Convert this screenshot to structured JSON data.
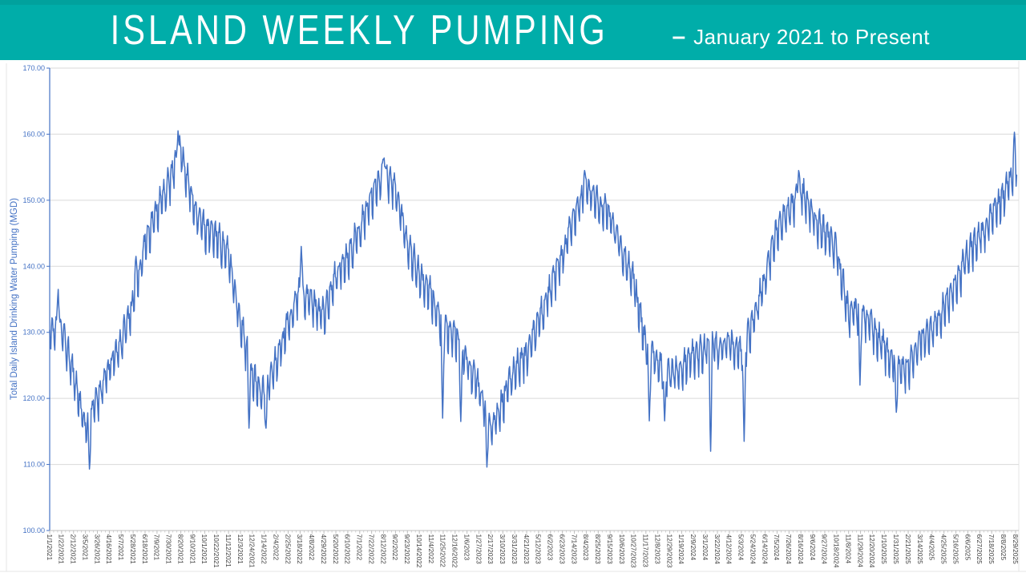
{
  "header": {
    "title": "ISLAND WEEKLY PUMPING",
    "separator": "–",
    "subtitle": "January 2021 to Present"
  },
  "colors": {
    "banner": "#00ADA9",
    "banner_top_strip": "#01A19D",
    "title_text": "#FFFFFF",
    "background": "#FFFFFF",
    "line": "#4472C4",
    "axis_labels_y": "#4472C4",
    "axis_title": "#4472C4",
    "axis_labels_x": "#404040",
    "gridline": "#D9D9D9",
    "axis_line": "#BFBFBF",
    "frame_line": "#E4E4E4"
  },
  "chart_data": {
    "type": "line",
    "title": "",
    "xlabel": "",
    "ylabel": "Total Daily Island Drinking Water Pumping (MGD)",
    "ylim": [
      100,
      170
    ],
    "y_tick_step": 10,
    "y_tick_labels": [
      "100.00",
      "110.00",
      "120.00",
      "130.00",
      "140.00",
      "150.00",
      "160.00",
      "170.00"
    ],
    "grid": "horizontal",
    "legend": "none",
    "sampling": "daily",
    "x_tick_interval_days": 21,
    "x_start_date": "1/1/2021",
    "x_end_date": "8/31/2025",
    "x_tick_labels": [
      "1/1/2021",
      "1/22/2021",
      "2/12/2021",
      "3/5/2021",
      "3/26/2021",
      "4/16/2021",
      "5/7/2021",
      "5/28/2021",
      "6/18/2021",
      "7/9/2021",
      "7/30/2021",
      "8/20/2021",
      "9/10/2021",
      "10/1/2021",
      "10/22/2021",
      "11/12/2021",
      "12/3/2021",
      "12/24/2021",
      "1/14/2022",
      "2/4/2022",
      "2/25/2022",
      "3/18/2022",
      "4/8/2022",
      "4/29/2022",
      "5/20/2022",
      "6/10/2022",
      "7/1/2022",
      "7/22/2022",
      "8/12/2022",
      "9/2/2022",
      "9/23/2022",
      "10/14/2022",
      "11/4/2022",
      "11/25/2022",
      "12/16/2022",
      "1/6/2023",
      "1/27/2023",
      "2/17/2023",
      "3/10/2023",
      "3/31/2023",
      "4/21/2023",
      "5/12/2023",
      "6/2/2023",
      "6/23/2023",
      "7/14/2023",
      "8/4/2023",
      "8/25/2023",
      "9/15/2023",
      "10/6/2023",
      "10/27/2023",
      "11/17/2023",
      "12/8/2023",
      "12/29/2023",
      "1/19/2024",
      "2/9/2024",
      "3/1/2024",
      "3/22/2024",
      "4/12/2024",
      "5/3/2024",
      "5/24/2024",
      "6/14/2024",
      "7/5/2024",
      "7/26/2024",
      "8/16/2024",
      "9/6/2024",
      "9/27/2024",
      "10/18/2024",
      "11/8/2024",
      "11/29/2024",
      "12/20/2024",
      "1/10/2025",
      "1/31/2025",
      "2/21/2025",
      "3/14/2025",
      "4/4/2025",
      "4/25/2025",
      "5/16/2025",
      "6/6/2025",
      "6/27/2025",
      "7/18/2025",
      "8/8/2025",
      "8/29/2025"
    ],
    "series": [
      {
        "name": "Total Daily Island Drinking Water Pumping (MGD)",
        "anchor_note": "estimated center of daily band at each 21-day x tick",
        "anchor_values": [
          129.5,
          130,
          123,
          115,
          119.5,
          124,
          128,
          134,
          143,
          148,
          152,
          157,
          149,
          145,
          144,
          141,
          131,
          123,
          120,
          125,
          131,
          136,
          134,
          132,
          138,
          141,
          145,
          150,
          154,
          151,
          143,
          138,
          135,
          130,
          129,
          125,
          121,
          115,
          119,
          124,
          126,
          131,
          136,
          141,
          147,
          151.5,
          149,
          147,
          142,
          137,
          127,
          125,
          123,
          124,
          126,
          127,
          127,
          128,
          126,
          131,
          138,
          145,
          148,
          151,
          147,
          144.5,
          142,
          132,
          133,
          130,
          127,
          124,
          124,
          128,
          130,
          133,
          137,
          141,
          144,
          147,
          150,
          155
        ]
      }
    ],
    "extremes": [
      {
        "date": "1/16/2021",
        "value": 136.5,
        "kind": "peak"
      },
      {
        "date": "3/12/2021",
        "value": 109.3,
        "kind": "min"
      },
      {
        "date": "6/2/2021",
        "value": 141.5,
        "kind": "peak"
      },
      {
        "date": "8/15/2021",
        "value": 160.5,
        "kind": "max"
      },
      {
        "date": "12/18/2021",
        "value": 115.5,
        "kind": "dip"
      },
      {
        "date": "1/17/2022",
        "value": 115.5,
        "kind": "dip"
      },
      {
        "date": "3/20/2022",
        "value": 143,
        "kind": "peak"
      },
      {
        "date": "8/13/2022",
        "value": 156.4,
        "kind": "peak"
      },
      {
        "date": "11/24/2022",
        "value": 117,
        "kind": "dip"
      },
      {
        "date": "12/26/2022",
        "value": 116.5,
        "kind": "dip"
      },
      {
        "date": "2/10/2023",
        "value": 109.6,
        "kind": "dip"
      },
      {
        "date": "8/1/2023",
        "value": 154.5,
        "kind": "peak"
      },
      {
        "date": "11/23/2023",
        "value": 116.6,
        "kind": "dip"
      },
      {
        "date": "12/20/2023",
        "value": 116.6,
        "kind": "dip"
      },
      {
        "date": "3/10/2024",
        "value": 112,
        "kind": "dip"
      },
      {
        "date": "5/8/2024",
        "value": 113.5,
        "kind": "dip"
      },
      {
        "date": "8/12/2024",
        "value": 154.5,
        "kind": "peak"
      },
      {
        "date": "11/28/2024",
        "value": 122,
        "kind": "dip"
      },
      {
        "date": "1/31/2025",
        "value": 117.9,
        "kind": "dip"
      },
      {
        "date": "8/27/2025",
        "value": 160.3,
        "kind": "peak"
      },
      {
        "date": "8/31/2025",
        "value": 153.8,
        "kind": "end"
      }
    ],
    "noise": {
      "weekly_amplitude": 2.3,
      "jitter": 1.1,
      "weekday_pattern": [
        0.35,
        -0.75,
        -1.0,
        0.45,
        0.8,
        1.0,
        0.65
      ],
      "seed": 11
    }
  }
}
